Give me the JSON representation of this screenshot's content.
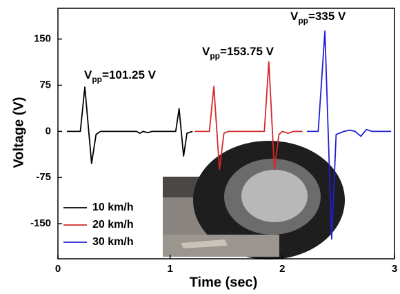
{
  "chart_data": {
    "type": "line",
    "xlabel": "Time (sec)",
    "ylabel": "Voltage (V)",
    "xlim": [
      0,
      3
    ],
    "xticks": [
      0,
      1,
      2,
      3
    ],
    "ylim": [
      -207,
      200
    ],
    "yticks": [
      150,
      75,
      0,
      -75,
      -150
    ],
    "legend": "lower left",
    "annotations": [
      {
        "main": "V",
        "sub": "pp",
        "rest": "=101.25 V"
      },
      {
        "main": "V",
        "sub": "pp",
        "rest": "=153.75 V"
      },
      {
        "main": "V",
        "sub": "pp",
        "rest": "=335 V"
      }
    ],
    "series": [
      {
        "name": "10 km/h",
        "color": "#000000",
        "x": [
          0.08,
          0.2,
          0.24,
          0.3,
          0.34,
          0.38,
          0.7,
          0.73,
          0.76,
          0.8,
          0.84,
          1.0,
          1.05,
          1.08,
          1.12,
          1.15,
          1.2
        ],
        "values": [
          0,
          0,
          72,
          -52,
          -5,
          0,
          0,
          -3,
          0,
          -2,
          0,
          0,
          0,
          37,
          -40,
          -3,
          0
        ]
      },
      {
        "name": "20 km/h",
        "color": "#d62728",
        "x": [
          1.22,
          1.35,
          1.39,
          1.44,
          1.48,
          1.52,
          1.84,
          1.88,
          1.93,
          1.97,
          2.0,
          2.05,
          2.1,
          2.18
        ],
        "values": [
          0,
          0,
          73,
          -62,
          -3,
          0,
          0,
          113,
          -62,
          -5,
          0,
          -3,
          0,
          0
        ]
      },
      {
        "name": "30 km/h",
        "color": "#1f1fd6",
        "x": [
          2.22,
          2.32,
          2.38,
          2.44,
          2.48,
          2.55,
          2.6,
          2.65,
          2.7,
          2.75,
          2.8,
          2.9,
          2.97
        ],
        "values": [
          0,
          0,
          163,
          -175,
          -5,
          0,
          2,
          0,
          -8,
          3,
          0,
          0,
          0
        ]
      }
    ]
  }
}
